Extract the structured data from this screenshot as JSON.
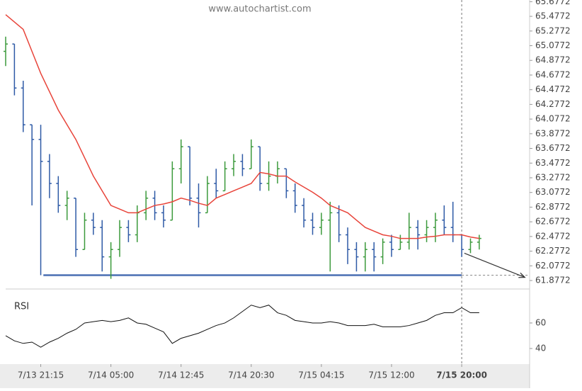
{
  "chart_data": [
    {
      "type": "ohlc",
      "watermark": "www.autochartist.com",
      "open": [
        65.0,
        65.1,
        64.5,
        64.0,
        63.8,
        63.5,
        63.2,
        62.9,
        63.0,
        62.3,
        62.7,
        62.6,
        62.2,
        62.3,
        62.6,
        62.5,
        62.8,
        63.0,
        62.8,
        62.7,
        63.4,
        63.7,
        63.0,
        62.8,
        63.2,
        63.1,
        63.4,
        63.5,
        63.4,
        63.7,
        63.2,
        63.3,
        63.4,
        63.1,
        62.9,
        62.7,
        62.6,
        62.7,
        62.8,
        62.5,
        62.3,
        62.2,
        62.3,
        62.2,
        62.4,
        62.3,
        62.4,
        62.6,
        62.5,
        62.6,
        62.7,
        62.6,
        62.5,
        62.3,
        62.4
      ],
      "high": [
        65.2,
        65.1,
        64.6,
        64.0,
        64.0,
        63.6,
        63.3,
        63.1,
        63.0,
        62.8,
        62.8,
        62.7,
        62.4,
        62.7,
        62.7,
        62.9,
        63.1,
        63.1,
        62.9,
        63.5,
        63.8,
        63.7,
        63.2,
        63.3,
        63.4,
        63.5,
        63.6,
        63.6,
        63.8,
        63.7,
        63.5,
        63.5,
        63.4,
        63.2,
        63.0,
        62.8,
        62.8,
        62.95,
        62.9,
        62.6,
        62.4,
        62.4,
        62.4,
        62.45,
        62.5,
        62.5,
        62.8,
        62.7,
        62.7,
        62.8,
        62.9,
        62.95,
        62.5,
        62.45,
        62.5
      ],
      "low": [
        64.8,
        64.4,
        63.9,
        62.9,
        61.95,
        63.0,
        62.8,
        62.7,
        62.2,
        62.3,
        62.5,
        62.0,
        61.9,
        62.2,
        62.4,
        62.4,
        62.7,
        62.7,
        62.6,
        62.7,
        63.2,
        62.9,
        62.6,
        62.8,
        63.0,
        63.1,
        63.3,
        63.3,
        63.4,
        63.1,
        63.1,
        63.2,
        63.0,
        62.8,
        62.6,
        62.5,
        62.5,
        62.0,
        62.4,
        62.1,
        62.0,
        62.0,
        62.0,
        62.1,
        62.2,
        62.3,
        62.3,
        62.3,
        62.4,
        62.4,
        62.5,
        62.4,
        62.2,
        62.25,
        62.3
      ],
      "close": [
        65.1,
        64.5,
        64.0,
        63.8,
        63.5,
        63.2,
        62.9,
        63.0,
        62.3,
        62.7,
        62.6,
        62.2,
        62.3,
        62.6,
        62.5,
        62.8,
        63.0,
        62.8,
        62.7,
        63.4,
        63.7,
        63.0,
        62.8,
        63.2,
        63.1,
        63.4,
        63.5,
        63.4,
        63.7,
        63.2,
        63.3,
        63.4,
        63.1,
        62.9,
        62.7,
        62.6,
        62.7,
        62.8,
        62.5,
        62.3,
        62.2,
        62.3,
        62.2,
        62.4,
        62.3,
        62.4,
        62.6,
        62.5,
        62.6,
        62.7,
        62.6,
        62.5,
        62.3,
        62.4,
        62.45
      ],
      "up_color": "#3c9a3c",
      "down_color": "#2e5aa6",
      "ma": [
        65.5,
        65.4,
        65.3,
        65.0,
        64.7,
        64.45,
        64.2,
        64.0,
        63.8,
        63.55,
        63.3,
        63.1,
        62.9,
        62.85,
        62.8,
        62.8,
        62.85,
        62.9,
        62.92,
        62.95,
        63.0,
        62.97,
        62.93,
        62.9,
        63.0,
        63.05,
        63.1,
        63.15,
        63.2,
        63.35,
        63.33,
        63.3,
        63.3,
        63.22,
        63.15,
        63.08,
        63.0,
        62.9,
        62.85,
        62.8,
        62.7,
        62.6,
        62.55,
        62.5,
        62.48,
        62.45,
        62.45,
        62.45,
        62.47,
        62.48,
        62.5,
        62.5,
        62.5,
        62.47,
        62.45
      ],
      "ma_color": "#e8443a",
      "support": {
        "value": 61.95,
        "x": [
          4.3,
          52
        ]
      },
      "support_color": "#4a6fb3",
      "forecast": {
        "x": [
          52.3,
          59.2
        ],
        "y": [
          62.25,
          61.92
        ]
      },
      "now_x": 52,
      "xlim": [
        0,
        59.5
      ],
      "ylim": [
        61.8,
        65.7
      ],
      "yticks": [
        65.6772,
        65.4772,
        65.2772,
        65.0772,
        64.8772,
        64.6772,
        64.4772,
        64.2772,
        64.0772,
        63.8772,
        63.6772,
        63.4772,
        63.2772,
        63.0772,
        62.8772,
        62.6772,
        62.4772,
        62.2772,
        62.0772,
        61.8772
      ],
      "xticks": [
        {
          "value": 4,
          "label": "7/13 21:15"
        },
        {
          "value": 12,
          "label": "7/14 05:00"
        },
        {
          "value": 20,
          "label": "7/14 12:45"
        },
        {
          "value": 28,
          "label": "7/14 20:30"
        },
        {
          "value": 36,
          "label": "7/15 04:15"
        },
        {
          "value": 44,
          "label": "7/15 12:00"
        },
        {
          "value": 52,
          "label": "7/15 20:00"
        }
      ],
      "highlight_tick": 6
    },
    {
      "type": "line",
      "title": "RSI",
      "values": [
        50,
        46,
        44,
        45,
        41,
        45,
        48,
        52,
        55,
        60,
        61,
        62,
        61,
        62,
        64,
        60,
        59,
        56,
        53,
        44,
        48,
        50,
        52,
        55,
        58,
        60,
        64,
        69,
        74,
        72,
        74,
        68,
        66,
        62,
        61,
        60,
        60,
        61,
        60,
        58,
        58,
        58,
        59,
        57,
        57,
        57,
        58,
        60,
        62,
        66,
        68,
        68,
        72,
        68,
        68
      ],
      "color": "#111111",
      "ylim": [
        28.9,
        84.4
      ],
      "yticks": [
        60,
        40
      ]
    }
  ]
}
